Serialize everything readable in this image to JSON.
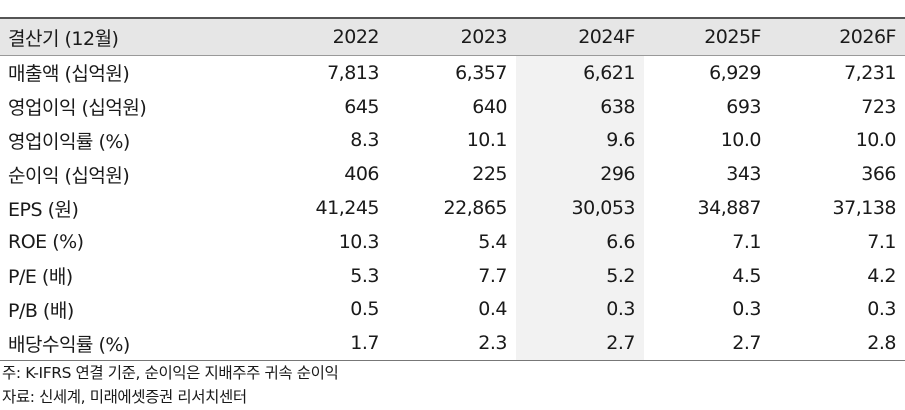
{
  "header": [
    "결산기 (12월)",
    "2022",
    "2023",
    "2024F",
    "2025F",
    "2026F"
  ],
  "rows": [
    [
      "매출액 (십억원)",
      "7,813",
      "6,357",
      "6,621",
      "6,929",
      "7,231"
    ],
    [
      "영업이익 (십억원)",
      "645",
      "640",
      "638",
      "693",
      "723"
    ],
    [
      "영업이익률 (%)",
      "8.3",
      "10.1",
      "9.6",
      "10.0",
      "10.0"
    ],
    [
      "순이익 (십억원)",
      "406",
      "225",
      "296",
      "343",
      "366"
    ],
    [
      "EPS (원)",
      "41,245",
      "22,865",
      "30,053",
      "34,887",
      "37,138"
    ],
    [
      "ROE (%)",
      "10.3",
      "5.4",
      "6.6",
      "7.1",
      "7.1"
    ],
    [
      "P/E (배)",
      "5.3",
      "7.7",
      "5.2",
      "4.5",
      "4.2"
    ],
    [
      "P/B (배)",
      "0.5",
      "0.4",
      "0.3",
      "0.3",
      "0.3"
    ],
    [
      "배당수익률 (%)",
      "1.7",
      "2.3",
      "2.7",
      "2.7",
      "2.8"
    ]
  ],
  "notes": {
    "note": "주: K-IFRS 연결 기준, 순이익은 지배주주 귀속 순이익",
    "source": "자료: 신세계, 미래에셋증권 리서치센터"
  }
}
